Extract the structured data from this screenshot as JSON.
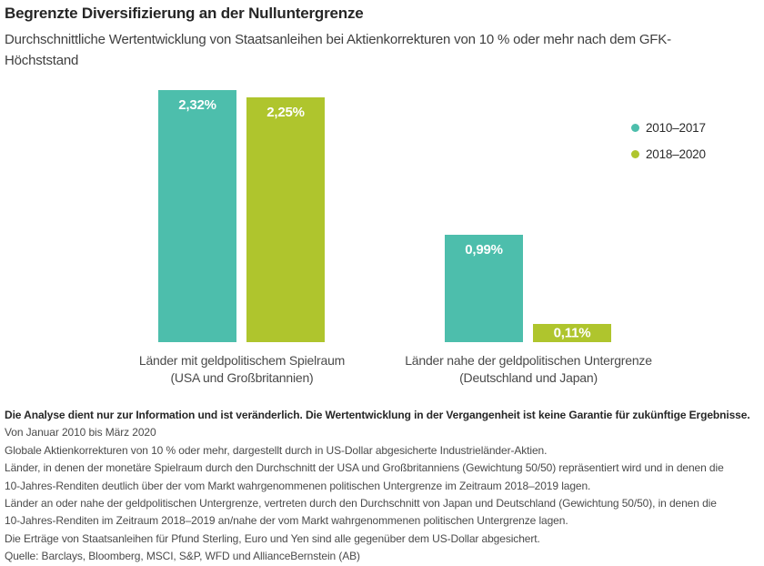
{
  "header": {
    "title": "Begrenzte Diversifizierung an der Nulluntergrenze",
    "subtitle": "Durchschnittliche Wertentwicklung von Staatsanleihen bei Aktienkorrekturen von 10 % oder mehr nach dem GFK-Höchststand"
  },
  "chart_data": {
    "type": "bar",
    "title": "Begrenzte Diversifizierung an der Nulluntergrenze",
    "categories": [
      {
        "line1": "Länder mit geldpolitischem Spielraum",
        "line2": "(USA und Großbritannien)"
      },
      {
        "line1": "Länder nahe der geldpolitischen Untergrenze",
        "line2": "(Deutschland und Japan)"
      }
    ],
    "series": [
      {
        "name": "2010–2017",
        "color": "#4dbeac",
        "values": [
          2.32,
          0.99
        ],
        "labels": [
          "2,32%",
          "0,99%"
        ]
      },
      {
        "name": "2018–2020",
        "color": "#afc52d",
        "values": [
          2.25,
          0.11
        ],
        "labels": [
          "2,25%",
          "0,11%"
        ]
      }
    ],
    "value_suffix": "%",
    "decimal_separator": ",",
    "ylim": [
      0,
      2.5
    ],
    "grid": false,
    "axis_lines": false,
    "legend_position": "right",
    "value_labels_inside_bars": true
  },
  "footnotes": {
    "lines": [
      "Die Analyse dient nur zur Information und ist veränderlich. Die Wertentwicklung in der Vergangenheit ist keine Garantie für zukünftige Ergebnisse.",
      "Von Januar 2010 bis März 2020",
      "Globale Aktienkorrekturen von 10 % oder mehr, dargestellt durch in US-Dollar abgesicherte Industrieländer-Aktien.",
      "Länder, in denen der monetäre Spielraum durch den Durchschnitt der USA und Großbritanniens (Gewichtung 50/50) repräsentiert wird und in denen die",
      "10-Jahres-Renditen deutlich über der vom Markt wahrgenommenen politischen Untergrenze im Zeitraum 2018–2019 lagen.",
      "Länder an oder nahe der geldpolitischen Untergrenze, vertreten durch den Durchschnitt von Japan und Deutschland (Gewichtung 50/50), in denen die",
      "10-Jahres-Renditen im Zeitraum 2018–2019 an/nahe der vom Markt wahrgenommenen politischen Untergrenze lagen.",
      "Die Erträge von Staatsanleihen für Pfund Sterling, Euro und Yen sind alle gegenüber dem US-Dollar abgesichert.",
      "Quelle: Barclays, Bloomberg, MSCI, S&P, WFD und AllianceBernstein (AB)"
    ]
  }
}
